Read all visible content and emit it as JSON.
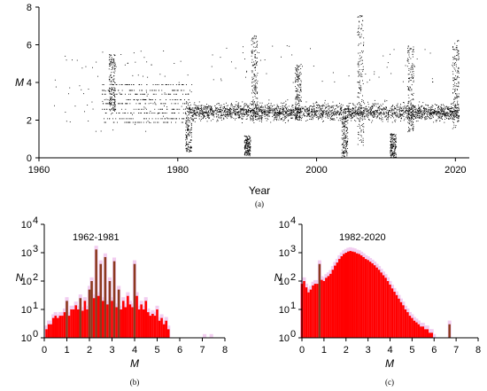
{
  "chart_data": [
    {
      "type": "scatter",
      "panel_label": "(a)",
      "xlabel": "Year",
      "ylabel": "M",
      "xlim": [
        1960,
        2022
      ],
      "ylim": [
        0,
        8
      ],
      "x_ticks": [
        "1960",
        "1980",
        "2000",
        "2020"
      ],
      "y_ticks": [
        "0",
        "2",
        "4",
        "6",
        "8"
      ],
      "color": "#000000",
      "features": {
        "background_band_M": [
          1.6,
          3.4
        ],
        "dense_start_year": 1982,
        "quantized_levels_1969_1982": [
          1.9,
          2.1,
          2.4,
          2.6,
          2.9,
          3.1,
          3.4,
          3.6,
          3.9
        ],
        "clusters": [
          {
            "year": 1970.5,
            "M_range": [
              2.5,
              5.5
            ]
          },
          {
            "year": 1981.5,
            "M_range": [
              0.3,
              3.0
            ]
          },
          {
            "year": 1990.0,
            "M_range": [
              0.1,
              1.2
            ]
          },
          {
            "year": 1991.0,
            "M_range": [
              2.0,
              6.5
            ]
          },
          {
            "year": 1997.3,
            "M_range": [
              2.0,
              5.0
            ]
          },
          {
            "year": 2004.0,
            "M_range": [
              0.0,
              2.2
            ]
          },
          {
            "year": 2006.3,
            "M_range": [
              0.6,
              7.6
            ]
          },
          {
            "year": 2011.0,
            "M_range": [
              0.0,
              1.3
            ]
          },
          {
            "year": 2013.5,
            "M_range": [
              1.4,
              6.0
            ]
          },
          {
            "year": 2020.0,
            "M_range": [
              1.5,
              6.3
            ]
          }
        ]
      }
    },
    {
      "type": "bar",
      "panel_label": "(b)",
      "title": "1962-1981",
      "xlabel": "M",
      "ylabel": "N",
      "xlim": [
        0,
        8
      ],
      "yscale": "log",
      "ylim": [
        1,
        10000
      ],
      "x_ticks": [
        "0",
        "1",
        "2",
        "3",
        "4",
        "5",
        "6",
        "7",
        "8"
      ],
      "y_ticks": [
        "10^0",
        "10^1",
        "10^2",
        "10^3",
        "10^4"
      ],
      "bin_width": 0.1,
      "bar_color": "#ff0000",
      "highlight_color": "#8b3a1e",
      "shade_color": "#f2cdf0",
      "bins_M": [
        0.1,
        0.2,
        0.3,
        0.4,
        0.5,
        0.6,
        0.7,
        0.8,
        0.9,
        1.0,
        1.1,
        1.2,
        1.3,
        1.4,
        1.5,
        1.6,
        1.7,
        1.8,
        1.9,
        2.0,
        2.1,
        2.2,
        2.3,
        2.4,
        2.5,
        2.6,
        2.7,
        2.8,
        2.9,
        3.0,
        3.1,
        3.2,
        3.3,
        3.4,
        3.5,
        3.6,
        3.7,
        3.8,
        3.9,
        4.0,
        4.1,
        4.2,
        4.3,
        4.4,
        4.5,
        4.6,
        4.7,
        4.8,
        4.9,
        5.0,
        5.1,
        5.2,
        5.3,
        5.4,
        5.5,
        7.1,
        7.4
      ],
      "values": [
        2,
        3,
        3,
        5,
        6,
        5,
        6,
        6,
        8,
        20,
        6,
        10,
        10,
        14,
        10,
        25,
        9,
        20,
        10,
        50,
        100,
        25,
        1300,
        30,
        400,
        20,
        700,
        15,
        100,
        20,
        500,
        12,
        50,
        10,
        20,
        12,
        30,
        15,
        12,
        400,
        30,
        10,
        15,
        10,
        20,
        8,
        6,
        7,
        6,
        10,
        4,
        5,
        3,
        4,
        2,
        1,
        1
      ],
      "highlighted_bins_M": [
        1.0,
        1.6,
        2.0,
        2.1,
        2.3,
        2.5,
        2.7,
        2.9,
        3.1,
        3.3,
        4.0
      ]
    },
    {
      "type": "bar",
      "panel_label": "(c)",
      "title": "1982-2020",
      "xlabel": "M",
      "ylabel": "N",
      "xlim": [
        0,
        8
      ],
      "yscale": "log",
      "ylim": [
        1,
        10000
      ],
      "x_ticks": [
        "0",
        "1",
        "2",
        "3",
        "4",
        "5",
        "6",
        "7",
        "8"
      ],
      "y_ticks": [
        "10^0",
        "10^1",
        "10^2",
        "10^3",
        "10^4"
      ],
      "bin_width": 0.1,
      "bar_color": "#ff0000",
      "highlight_color": "#8b3a1e",
      "shade_color": "#f2cdf0",
      "bins_M": [
        0.0,
        0.1,
        0.2,
        0.3,
        0.4,
        0.5,
        0.6,
        0.7,
        0.8,
        0.9,
        1.0,
        1.1,
        1.2,
        1.3,
        1.4,
        1.5,
        1.6,
        1.7,
        1.8,
        1.9,
        2.0,
        2.1,
        2.2,
        2.3,
        2.4,
        2.5,
        2.6,
        2.7,
        2.8,
        2.9,
        3.0,
        3.1,
        3.2,
        3.3,
        3.4,
        3.5,
        3.6,
        3.7,
        3.8,
        3.9,
        4.0,
        4.1,
        4.2,
        4.3,
        4.4,
        4.5,
        4.6,
        4.7,
        4.8,
        4.9,
        5.0,
        5.1,
        5.2,
        5.3,
        5.4,
        5.5,
        5.6,
        5.7,
        5.8,
        5.9,
        6.0,
        6.7
      ],
      "values": [
        80,
        100,
        60,
        40,
        50,
        70,
        80,
        80,
        400,
        110,
        100,
        130,
        150,
        180,
        250,
        350,
        450,
        600,
        750,
        900,
        1000,
        1100,
        1150,
        1100,
        1050,
        950,
        900,
        800,
        700,
        600,
        550,
        480,
        420,
        360,
        300,
        250,
        200,
        160,
        130,
        100,
        75,
        55,
        42,
        32,
        24,
        18,
        14,
        10,
        8,
        6,
        5,
        4,
        3.5,
        3,
        2.5,
        2.5,
        2,
        2,
        1.5,
        1.5,
        1,
        3
      ],
      "highlighted_bins_M": [
        0.8,
        6.7
      ]
    }
  ]
}
